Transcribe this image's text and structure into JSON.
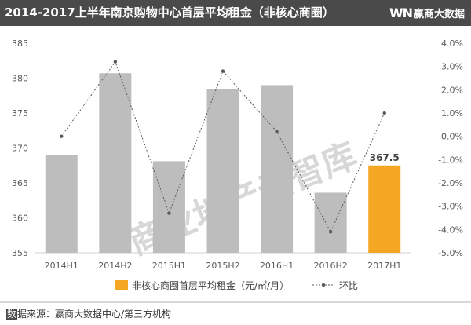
{
  "header": {
    "title": "2014-2017上半年南京购物中心首层平均租金（非核心商圈）",
    "logo_mark": "WN",
    "logo_text": "赢商大数据"
  },
  "watermark": "商业地产云智库",
  "source": {
    "first_char": "数",
    "rest": "据来源：赢商大数据中心/第三方机构"
  },
  "colors": {
    "bar_gray": "#bdbdbd",
    "bar_highlight": "#f5a623",
    "line": "#595959",
    "header_bg": "#4a4a4a"
  },
  "chart_data": {
    "type": "bar",
    "categories": [
      "2014H1",
      "2014H2",
      "2015H1",
      "2015H2",
      "2016H1",
      "2016H2",
      "2017H1"
    ],
    "series": [
      {
        "name": "非核心商圈首层平均租金（元/㎡/月）",
        "type": "bar",
        "axis": "left",
        "values": [
          369.0,
          380.7,
          368.1,
          378.4,
          379.0,
          363.6,
          367.5
        ],
        "highlight_index": 6
      },
      {
        "name": "环比",
        "type": "line",
        "axis": "right",
        "unit": "%",
        "values": [
          0.0,
          3.2,
          -3.3,
          2.8,
          0.2,
          -4.1,
          1.0
        ]
      }
    ],
    "data_labels": [
      {
        "index": 6,
        "text": "367.5"
      }
    ],
    "y_left": {
      "min": 355,
      "max": 385,
      "ticks": [
        "355",
        "360",
        "365",
        "370",
        "375",
        "380",
        "385"
      ]
    },
    "y_right": {
      "min": -5.0,
      "max": 4.0,
      "ticks": [
        "-5.0%",
        "-4.0%",
        "-3.0%",
        "-2.0%",
        "-1.0%",
        "0.0%",
        "1.0%",
        "2.0%",
        "3.0%",
        "4.0%"
      ]
    },
    "grid": false,
    "legend_position": "bottom"
  }
}
